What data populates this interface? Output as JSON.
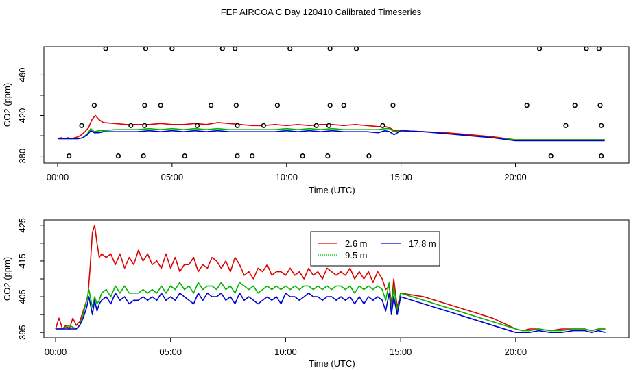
{
  "page": {
    "title": "FEF AIRCOA C  Day 120410  Calibrated Timeseries"
  },
  "colors": {
    "red": "#e00000",
    "green": "#00b400",
    "blue": "#0000d0",
    "frame": "#000000"
  },
  "chart_data": [
    {
      "type": "scatter",
      "title": "",
      "xlabel": "Time (UTC)",
      "ylabel": "CO2 (ppm)",
      "xlim": [
        0,
        24
      ],
      "ylim": [
        373,
        488
      ],
      "xticks": [
        0,
        5,
        10,
        15,
        20
      ],
      "xtick_labels": [
        "00:00",
        "05:00",
        "10:00",
        "15:00",
        "20:00"
      ],
      "yticks": [
        380,
        420,
        460
      ],
      "ytick_labels": [
        "380",
        "420",
        "460"
      ],
      "extra_yticks": [
        400,
        440
      ],
      "calibration_points": {
        "x": [
          0.5,
          2.1,
          3.85,
          5.0,
          7.2,
          7.75,
          10.15,
          11.9,
          13.05,
          21.05,
          23.1,
          23.65,
          1.6,
          3.8,
          4.5,
          6.7,
          7.8,
          9.6,
          11.9,
          12.5,
          14.65,
          20.5,
          22.6,
          23.7,
          1.05,
          3.2,
          3.8,
          6.1,
          7.85,
          9.0,
          11.3,
          11.85,
          14.2,
          22.2,
          23.75,
          2.65,
          3.75,
          5.55,
          7.85,
          8.5,
          10.7,
          11.8,
          13.6,
          21.55,
          23.75
        ],
        "y": [
          380,
          490,
          490,
          490,
          490,
          490,
          490,
          490,
          490,
          490,
          490,
          490,
          430,
          430,
          430,
          430,
          430,
          430,
          430,
          430,
          430,
          430,
          430,
          430,
          410,
          410,
          410,
          410,
          410,
          410,
          410,
          410,
          410,
          410,
          410,
          380,
          380,
          380,
          380,
          380,
          380,
          380,
          380,
          380,
          380
        ]
      },
      "series": [
        {
          "name": "2.6 m",
          "color": "#e00000",
          "x": [
            0,
            0.15,
            0.3,
            0.45,
            0.6,
            0.75,
            0.9,
            1.05,
            1.2,
            1.35,
            1.5,
            1.65,
            1.8,
            2.0,
            2.5,
            3.0,
            3.5,
            4.0,
            4.5,
            5.0,
            5.5,
            6.0,
            6.5,
            7.0,
            7.5,
            8.0,
            8.5,
            9.0,
            9.5,
            10.0,
            10.5,
            11.0,
            11.5,
            12.0,
            12.5,
            13.0,
            13.5,
            14.0,
            14.3,
            14.5,
            14.7,
            15.0,
            16.0,
            17.0,
            18.0,
            19.0,
            20.0,
            20.5,
            21.0,
            22.0,
            23.0,
            23.9
          ],
          "y": [
            397,
            398,
            397,
            398,
            397,
            398,
            399,
            401,
            404,
            408,
            416,
            420,
            416,
            413,
            412,
            411,
            411,
            411,
            412,
            411,
            411,
            412,
            411,
            413,
            412,
            411,
            410,
            410,
            411,
            410,
            411,
            410,
            411,
            411,
            410,
            411,
            410,
            409,
            409,
            408,
            405,
            405,
            404,
            403,
            401,
            399,
            396,
            396,
            396,
            396,
            396,
            396
          ]
        },
        {
          "name": "9.5 m",
          "color": "#00b400",
          "x": [
            0,
            0.3,
            0.6,
            0.9,
            1.1,
            1.3,
            1.45,
            1.6,
            1.8,
            2.0,
            2.5,
            3.0,
            3.5,
            4.0,
            4.5,
            5.0,
            5.5,
            6.0,
            6.5,
            7.0,
            7.5,
            8.0,
            8.5,
            9.0,
            9.5,
            10.0,
            10.5,
            11.0,
            11.5,
            12.0,
            12.5,
            13.0,
            13.5,
            14.0,
            14.3,
            14.5,
            14.7,
            15.0,
            16.0,
            17.0,
            18.0,
            19.0,
            20.0,
            20.5,
            21.0,
            22.0,
            23.0,
            23.9
          ],
          "y": [
            397,
            397,
            397,
            397,
            398,
            402,
            407,
            404,
            405,
            405,
            406,
            406,
            406,
            407,
            406,
            407,
            406,
            407,
            406,
            407,
            406,
            406,
            406,
            406,
            406,
            407,
            406,
            407,
            406,
            407,
            406,
            406,
            406,
            406,
            407,
            407,
            404,
            405,
            404,
            402,
            400,
            398,
            396,
            396,
            396,
            396,
            396,
            396
          ]
        },
        {
          "name": "17.8 m",
          "color": "#0000d0",
          "x": [
            0,
            0.3,
            0.6,
            0.9,
            1.1,
            1.3,
            1.45,
            1.6,
            1.8,
            2.0,
            2.5,
            3.0,
            3.5,
            4.0,
            4.5,
            5.0,
            5.5,
            6.0,
            6.5,
            7.0,
            7.5,
            8.0,
            8.5,
            9.0,
            9.5,
            10.0,
            10.5,
            11.0,
            11.5,
            12.0,
            12.5,
            13.0,
            13.5,
            14.0,
            14.3,
            14.5,
            14.7,
            15.0,
            16.0,
            17.0,
            18.0,
            19.0,
            20.0,
            20.5,
            21.0,
            22.0,
            23.0,
            23.9
          ],
          "y": [
            397,
            397,
            397,
            397,
            398,
            401,
            405,
            403,
            403,
            404,
            404,
            404,
            404,
            405,
            404,
            405,
            404,
            405,
            404,
            405,
            404,
            404,
            404,
            404,
            404,
            405,
            404,
            405,
            404,
            405,
            404,
            404,
            404,
            403,
            405,
            404,
            401,
            405,
            404,
            402,
            400,
            398,
            395,
            395,
            395,
            395,
            395,
            395
          ]
        }
      ]
    },
    {
      "type": "line",
      "title": "",
      "xlabel": "Time (UTC)",
      "ylabel": "CO2 (ppm)",
      "xlim": [
        -0.2,
        24.4
      ],
      "ylim": [
        393.5,
        426.5
      ],
      "xticks": [
        0,
        5,
        10,
        15,
        20
      ],
      "xtick_labels": [
        "00:00",
        "05:00",
        "10:00",
        "15:00",
        "20:00"
      ],
      "yticks": [
        395,
        405,
        415,
        425
      ],
      "ytick_labels": [
        "395",
        "405",
        "415",
        "425"
      ],
      "extra_yticks": [
        400,
        410,
        420
      ],
      "legend": {
        "position": "top-center",
        "entries": [
          "2.6 m",
          "17.8 m",
          "9.5 m"
        ]
      },
      "series": [
        {
          "name": "2.6 m",
          "color": "#e00000",
          "x": [
            0.0,
            0.15,
            0.3,
            0.45,
            0.6,
            0.75,
            0.9,
            1.05,
            1.2,
            1.3,
            1.4,
            1.5,
            1.6,
            1.7,
            1.8,
            1.9,
            2.0,
            2.2,
            2.4,
            2.6,
            2.8,
            3.0,
            3.2,
            3.4,
            3.6,
            3.8,
            4.0,
            4.2,
            4.4,
            4.6,
            4.8,
            5.0,
            5.2,
            5.4,
            5.6,
            5.8,
            6.0,
            6.2,
            6.4,
            6.6,
            6.8,
            7.0,
            7.2,
            7.4,
            7.6,
            7.8,
            8.0,
            8.2,
            8.4,
            8.6,
            8.8,
            9.0,
            9.2,
            9.4,
            9.6,
            9.8,
            10.0,
            10.2,
            10.4,
            10.6,
            10.8,
            11.0,
            11.2,
            11.4,
            11.6,
            11.8,
            12.0,
            12.2,
            12.4,
            12.6,
            12.8,
            13.0,
            13.2,
            13.4,
            13.6,
            13.8,
            14.0,
            14.2,
            14.35,
            14.5,
            14.6,
            14.7,
            14.85,
            15.0,
            16.0,
            17.0,
            18.0,
            19.0,
            20.0,
            20.3,
            20.6,
            21.0,
            21.5,
            22.0,
            22.5,
            23.0,
            23.3,
            23.6,
            23.9
          ],
          "y": [
            396,
            399,
            396,
            397,
            396,
            399,
            397,
            398,
            401,
            403,
            405,
            413,
            423,
            425,
            420,
            416,
            417,
            416,
            417,
            414,
            417,
            413,
            416,
            414,
            418,
            415,
            417,
            414,
            415,
            413,
            417,
            413,
            416,
            412,
            414,
            414,
            416,
            412,
            414,
            413,
            416,
            415,
            413,
            415,
            412,
            416,
            414,
            411,
            412,
            410,
            413,
            412,
            414,
            411,
            412,
            412,
            411,
            413,
            411,
            412,
            410,
            413,
            411,
            412,
            410,
            413,
            412,
            411,
            412,
            411,
            413,
            410,
            412,
            410,
            412,
            409,
            412,
            410,
            407,
            408,
            403,
            410,
            402,
            406,
            405,
            403,
            401,
            399,
            396,
            395.5,
            396,
            396,
            395.5,
            396,
            396,
            396,
            395.5,
            396,
            396
          ]
        },
        {
          "name": "9.5 m",
          "color": "#00b400",
          "x": [
            0.0,
            0.3,
            0.6,
            0.9,
            1.05,
            1.2,
            1.35,
            1.45,
            1.6,
            1.7,
            1.8,
            1.9,
            2.0,
            2.2,
            2.4,
            2.6,
            2.8,
            3.0,
            3.2,
            3.4,
            3.6,
            3.8,
            4.0,
            4.2,
            4.4,
            4.6,
            4.8,
            5.0,
            5.2,
            5.4,
            5.6,
            5.8,
            6.0,
            6.2,
            6.4,
            6.6,
            6.8,
            7.0,
            7.2,
            7.4,
            7.6,
            7.8,
            8.0,
            8.2,
            8.4,
            8.6,
            8.8,
            9.0,
            9.2,
            9.4,
            9.6,
            9.8,
            10.0,
            10.2,
            10.4,
            10.6,
            10.8,
            11.0,
            11.2,
            11.4,
            11.6,
            11.8,
            12.0,
            12.2,
            12.4,
            12.6,
            12.8,
            13.0,
            13.2,
            13.4,
            13.6,
            13.8,
            14.0,
            14.2,
            14.35,
            14.5,
            14.6,
            14.7,
            14.85,
            15.0,
            16.0,
            17.0,
            18.0,
            19.0,
            20.0,
            20.3,
            20.6,
            21.0,
            21.5,
            22.0,
            22.5,
            23.0,
            23.3,
            23.6,
            23.9
          ],
          "y": [
            396,
            396,
            397,
            396,
            397,
            400,
            404,
            407,
            402,
            405,
            403,
            404,
            406,
            407,
            405,
            408,
            406,
            408,
            406,
            406,
            406,
            407,
            406,
            407,
            406,
            408,
            406,
            408,
            407,
            409,
            407,
            408,
            406,
            409,
            407,
            408,
            408,
            407,
            409,
            407,
            408,
            406,
            409,
            408,
            407,
            408,
            406,
            407,
            408,
            407,
            408,
            407,
            408,
            407,
            408,
            407,
            408,
            408,
            407,
            408,
            407,
            408,
            407,
            408,
            408,
            407,
            408,
            406,
            408,
            407,
            408,
            407,
            408,
            407,
            404,
            409,
            401,
            408,
            401,
            406,
            404,
            402,
            400,
            398,
            396,
            395.5,
            395.5,
            396,
            395.5,
            395.5,
            396,
            396,
            395.5,
            396,
            396
          ]
        },
        {
          "name": "17.8 m",
          "color": "#0000d0",
          "x": [
            0.0,
            0.3,
            0.6,
            0.9,
            1.05,
            1.2,
            1.35,
            1.45,
            1.6,
            1.7,
            1.8,
            1.9,
            2.0,
            2.2,
            2.4,
            2.6,
            2.8,
            3.0,
            3.2,
            3.4,
            3.6,
            3.8,
            4.0,
            4.2,
            4.4,
            4.6,
            4.8,
            5.0,
            5.2,
            5.4,
            5.6,
            5.8,
            6.0,
            6.2,
            6.4,
            6.6,
            6.8,
            7.0,
            7.2,
            7.4,
            7.6,
            7.8,
            8.0,
            8.2,
            8.4,
            8.6,
            8.8,
            9.0,
            9.2,
            9.4,
            9.6,
            9.8,
            10.0,
            10.2,
            10.4,
            10.6,
            10.8,
            11.0,
            11.2,
            11.4,
            11.6,
            11.8,
            12.0,
            12.2,
            12.4,
            12.6,
            12.8,
            13.0,
            13.2,
            13.4,
            13.6,
            13.8,
            14.0,
            14.2,
            14.35,
            14.5,
            14.6,
            14.7,
            14.85,
            15.0,
            16.0,
            17.0,
            18.0,
            19.0,
            20.0,
            20.3,
            20.6,
            21.0,
            21.5,
            22.0,
            22.5,
            23.0,
            23.3,
            23.6,
            23.9
          ],
          "y": [
            396,
            396,
            396,
            396,
            397,
            399,
            402,
            405,
            400,
            404,
            401,
            403,
            404,
            405,
            403,
            406,
            404,
            405,
            403,
            404,
            404,
            405,
            404,
            405,
            404,
            406,
            404,
            405,
            404,
            406,
            405,
            404,
            403,
            406,
            404,
            406,
            405,
            405,
            406,
            404,
            405,
            403,
            406,
            404,
            405,
            404,
            403,
            404,
            405,
            404,
            405,
            403,
            406,
            405,
            405,
            404,
            405,
            406,
            405,
            405,
            404,
            405,
            405,
            404,
            405,
            404,
            405,
            403,
            405,
            403,
            405,
            404,
            405,
            404,
            401,
            406,
            400,
            405,
            400,
            405,
            403,
            401,
            399,
            397,
            395,
            395,
            395,
            395.5,
            395,
            395,
            395.5,
            395.5,
            395,
            395.5,
            395
          ]
        }
      ]
    }
  ]
}
